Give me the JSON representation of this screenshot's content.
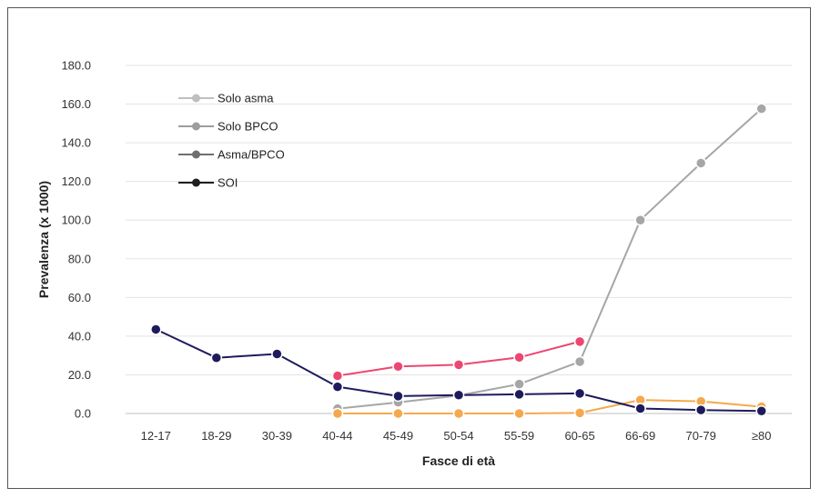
{
  "chart_data": {
    "type": "line",
    "xlabel": "Fasce di età",
    "ylabel": "Prevalenza (x 1000)",
    "ylim": [
      0,
      180
    ],
    "yticks": [
      "0.0",
      "20.0",
      "40.0",
      "60.0",
      "80.0",
      "100.0",
      "120.0",
      "140.0",
      "160.0",
      "180.0"
    ],
    "categories": [
      "12-17",
      "18-29",
      "30-39",
      "40-44",
      "45-49",
      "50-54",
      "55-59",
      "60-65",
      "66-69",
      "70-79",
      "≥80"
    ],
    "grid": true,
    "legend_position": "top-left",
    "series": [
      {
        "name": "Solo asma",
        "color": "#ec4672",
        "values": [
          null,
          null,
          null,
          19.5,
          24.3,
          25.2,
          29.0,
          37.2,
          null,
          null,
          null
        ]
      },
      {
        "name": "Solo BPCO",
        "color": "#a6a6a6",
        "values": [
          null,
          null,
          null,
          2.5,
          5.8,
          9.3,
          15.2,
          26.8,
          100.0,
          129.5,
          157.6
        ]
      },
      {
        "name": "Asma/BPCO",
        "color": "#f5a94d",
        "values": [
          null,
          null,
          null,
          0.0,
          0.0,
          0.0,
          0.0,
          0.3,
          7.0,
          6.3,
          3.5
        ]
      },
      {
        "name": "SOI",
        "color": "#1e1b5c",
        "values": [
          43.5,
          28.8,
          30.8,
          13.8,
          9.0,
          9.5,
          9.9,
          10.4,
          2.6,
          1.8,
          1.3
        ]
      }
    ],
    "legend": [
      {
        "name": "Solo asma",
        "color": "#bfbfbf"
      },
      {
        "name": "Solo BPCO",
        "color": "#9d9d9d"
      },
      {
        "name": "Asma/BPCO",
        "color": "#6f6f6f"
      },
      {
        "name": "SOI",
        "color": "#1f1f1f"
      }
    ]
  }
}
